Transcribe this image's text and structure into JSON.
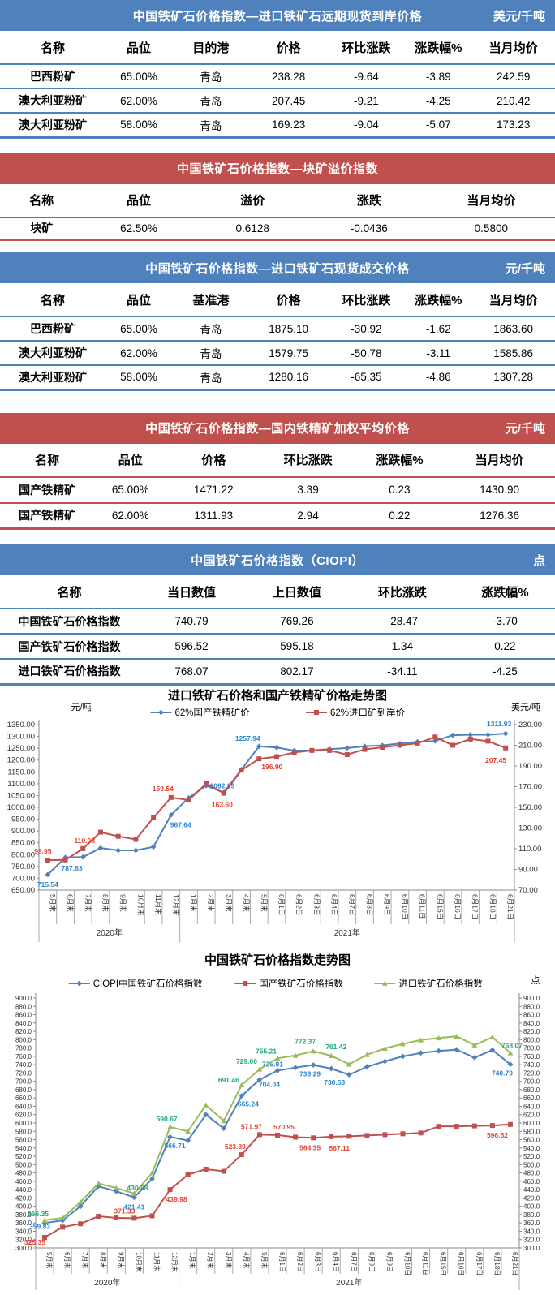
{
  "tables": [
    {
      "title": "中国铁矿石价格指数—进口铁矿石远期现货到岸价格",
      "unit": "美元/千吨",
      "theme_color": "#4F81BD",
      "headers": [
        "名称",
        "品位",
        "目的港",
        "价格",
        "环比涨跌",
        "涨跌幅%",
        "当月均价"
      ],
      "rows": [
        [
          "巴西粉矿",
          "65.00%",
          "青岛",
          "238.28",
          "-9.64",
          "-3.89",
          "242.59"
        ],
        [
          "澳大利亚粉矿",
          "62.00%",
          "青岛",
          "207.45",
          "-9.21",
          "-4.25",
          "210.42"
        ],
        [
          "澳大利亚粉矿",
          "58.00%",
          "青岛",
          "169.23",
          "-9.04",
          "-5.07",
          "173.23"
        ]
      ]
    },
    {
      "title": "中国铁矿石价格指数—块矿溢价指数",
      "unit": "",
      "theme_color": "#C0504D",
      "headers": [
        "名称",
        "品位",
        "溢价",
        "涨跌",
        "当月均价"
      ],
      "rows": [
        [
          "块矿",
          "62.50%",
          "0.6128",
          "-0.0436",
          "0.5800"
        ]
      ]
    },
    {
      "title": "中国铁矿石价格指数—进口铁矿石现货成交价格",
      "unit": "元/千吨",
      "theme_color": "#4F81BD",
      "headers": [
        "名称",
        "品位",
        "基准港",
        "价格",
        "环比涨跌",
        "涨跌幅%",
        "当月均价"
      ],
      "rows": [
        [
          "巴西粉矿",
          "65.00%",
          "青岛",
          "1875.10",
          "-30.92",
          "-1.62",
          "1863.60"
        ],
        [
          "澳大利亚粉矿",
          "62.00%",
          "青岛",
          "1579.75",
          "-50.78",
          "-3.11",
          "1585.86"
        ],
        [
          "澳大利亚粉矿",
          "58.00%",
          "青岛",
          "1280.16",
          "-65.35",
          "-4.86",
          "1307.28"
        ]
      ]
    },
    {
      "title": "中国铁矿石价格指数—国内铁精矿加权平均价格",
      "unit": "元/千吨",
      "theme_color": "#C0504D",
      "headers": [
        "名称",
        "品位",
        "价格",
        "环比涨跌",
        "涨跌幅%",
        "当月均价"
      ],
      "rows": [
        [
          "国产铁精矿",
          "65.00%",
          "1471.22",
          "3.39",
          "0.23",
          "1430.90"
        ],
        [
          "国产铁精矿",
          "62.00%",
          "1311.93",
          "2.94",
          "0.22",
          "1276.36"
        ]
      ]
    },
    {
      "title": "中国铁矿石价格指数（CIOPI）",
      "unit": "点",
      "theme_color": "#4F81BD",
      "headers": [
        "名称",
        "当日数值",
        "上日数值",
        "环比涨跌",
        "涨跌幅%"
      ],
      "rows": [
        [
          "中国铁矿石价格指数",
          "740.79",
          "769.26",
          "-28.47",
          "-3.70"
        ],
        [
          "国产铁矿石价格指数",
          "596.52",
          "595.18",
          "1.34",
          "0.22"
        ],
        [
          "进口铁矿石价格指数",
          "768.07",
          "802.17",
          "-34.11",
          "-4.25"
        ]
      ]
    }
  ],
  "chart_data": [
    {
      "type": "line",
      "title": "进口铁矿石价格和国产铁精矿价格走势图",
      "unit_left": "元/吨",
      "unit_right": "美元/吨",
      "left_axis": {
        "min": 650,
        "max": 1350,
        "step": 50,
        "decimals": 2
      },
      "right_axis": {
        "min": 70,
        "max": 230,
        "step": 20,
        "decimals": 2
      },
      "categories": [
        "5月末",
        "6月末",
        "7月末",
        "8月末",
        "9月末",
        "10月末",
        "11月末",
        "12月末",
        "1月末",
        "2月末",
        "3月末",
        "4月末",
        "5月末",
        "6月1日",
        "6月2日",
        "6月3日",
        "6月4日",
        "6月7日",
        "6月8日",
        "6月9日",
        "6月10日",
        "6月11日",
        "6月15日",
        "6月16日",
        "6月17日",
        "6月18日",
        "6月21日"
      ],
      "year_groups": [
        {
          "label": "2020年",
          "span": 8
        },
        {
          "label": "2021年",
          "span": 19
        }
      ],
      "series": [
        {
          "name": "62%国产铁精矿价",
          "color": "#4F81BD",
          "label_color": "#2E86D0",
          "marker": "diamond",
          "axis": "left",
          "values": [
            715.54,
            787.83,
            790,
            828,
            818,
            818,
            833,
            967.64,
            1040,
            1092,
            1062.89,
            1160,
            1257.94,
            1253,
            1240,
            1241,
            1246,
            1251,
            1258,
            1262,
            1270,
            1277,
            1281,
            1305,
            1307,
            1307,
            1311.93
          ],
          "labels": [
            {
              "i": 0,
              "t": "715.54",
              "dx": 0,
              "dy": 15
            },
            {
              "i": 1,
              "t": "787.83",
              "dx": 8,
              "dy": 16
            },
            {
              "i": 7,
              "t": "967.64",
              "dx": 12,
              "dy": 15
            },
            {
              "i": 10,
              "t": "1062.89",
              "dx": -2,
              "dy": -5
            },
            {
              "i": 12,
              "t": "1257.94",
              "dx": -14,
              "dy": -7
            },
            {
              "i": 26,
              "t": "1311.93",
              "dx": -8,
              "dy": -9
            }
          ]
        },
        {
          "name": "62%进口矿到岸价",
          "color": "#C0504D",
          "label_color": "#E8402F",
          "marker": "square",
          "axis": "right",
          "values": [
            98.95,
            99.2,
            110.08,
            126,
            122,
            119,
            140,
            159.54,
            157,
            173,
            163.6,
            186,
            196.9,
            199,
            203,
            205,
            205,
            201,
            206,
            208,
            210,
            212,
            218,
            210,
            216,
            214,
            207.45
          ],
          "labels": [
            {
              "i": 0,
              "t": "98.95",
              "dx": -6,
              "dy": -8
            },
            {
              "i": 2,
              "t": "110.08",
              "dx": 2,
              "dy": -7
            },
            {
              "i": 7,
              "t": "159.54",
              "dx": -10,
              "dy": -8
            },
            {
              "i": 10,
              "t": "163.60",
              "dx": -2,
              "dy": 17
            },
            {
              "i": 12,
              "t": "196.90",
              "dx": 16,
              "dy": 13
            },
            {
              "i": 26,
              "t": "207.45",
              "dx": -12,
              "dy": 18
            }
          ]
        }
      ]
    },
    {
      "type": "line",
      "title": "中国铁矿石价格指数走势图",
      "unit_left": "",
      "unit_right": "点",
      "left_axis": {
        "min": 300,
        "max": 900,
        "step": 20,
        "decimals": 1
      },
      "right_axis": {
        "min": 300,
        "max": 900,
        "step": 20,
        "decimals": 1
      },
      "categories": [
        "5月末",
        "6月末",
        "7月末",
        "8月末",
        "9月末",
        "10月末",
        "11月末",
        "12月末",
        "1月末",
        "2月末",
        "3月末",
        "4月末",
        "5月末",
        "6月1日",
        "6月2日",
        "6月3日",
        "6月4日",
        "6月7日",
        "6月8日",
        "6月9日",
        "6月10日",
        "6月11日",
        "6月15日",
        "6月16日",
        "6月17日",
        "6月18日",
        "6月21日"
      ],
      "year_groups": [
        {
          "label": "2020年",
          "span": 8
        },
        {
          "label": "2021年",
          "span": 19
        }
      ],
      "series": [
        {
          "name": "CIOPI中国铁矿石价格指数",
          "color": "#4F81BD",
          "label_color": "#2E86D0",
          "marker": "diamond",
          "axis": "left",
          "values": [
            359.83,
            366,
            400,
            448,
            436,
            421.41,
            466,
            566.71,
            558,
            620,
            587,
            665.24,
            704.04,
            725.91,
            733,
            739.29,
            730.53,
            716,
            735,
            748,
            760,
            768,
            773,
            776,
            757,
            775,
            740.79
          ],
          "labels": [
            {
              "i": 0,
              "t": "359.83",
              "dx": -6,
              "dy": 7
            },
            {
              "i": 5,
              "t": "421.41",
              "dx": 0,
              "dy": 15
            },
            {
              "i": 7,
              "t": "566.71",
              "dx": 6,
              "dy": 14
            },
            {
              "i": 11,
              "t": "665.24",
              "dx": 8,
              "dy": 13
            },
            {
              "i": 12,
              "t": "704.04",
              "dx": 12,
              "dy": 9
            },
            {
              "i": 13,
              "t": "725.91",
              "dx": -6,
              "dy": -5
            },
            {
              "i": 15,
              "t": "739.29",
              "dx": -4,
              "dy": 14
            },
            {
              "i": 16,
              "t": "730.53",
              "dx": 4,
              "dy": 20
            },
            {
              "i": 26,
              "t": "740.79",
              "dx": -10,
              "dy": 14
            }
          ]
        },
        {
          "name": "国产铁矿石价格指数",
          "color": "#C0504D",
          "label_color": "#E8402F",
          "marker": "square",
          "axis": "left",
          "values": [
            325.35,
            350,
            358,
            376,
            372,
            371.33,
            377,
            439.98,
            476,
            489,
            484,
            523.89,
            571.97,
            570.95,
            566,
            564.35,
            567.11,
            568,
            570,
            572,
            574,
            576,
            592,
            592,
            593,
            594,
            596.52
          ],
          "labels": [
            {
              "i": 0,
              "t": "325.35",
              "dx": -12,
              "dy": 9
            },
            {
              "i": 5,
              "t": "371.33",
              "dx": -12,
              "dy": -6
            },
            {
              "i": 7,
              "t": "439.98",
              "dx": 8,
              "dy": 15
            },
            {
              "i": 11,
              "t": "523.89",
              "dx": -8,
              "dy": -7
            },
            {
              "i": 12,
              "t": "571.97",
              "dx": -10,
              "dy": -7
            },
            {
              "i": 13,
              "t": "570.95",
              "dx": 8,
              "dy": -7
            },
            {
              "i": 15,
              "t": "564.35",
              "dx": -4,
              "dy": 15
            },
            {
              "i": 16,
              "t": "567.11",
              "dx": 10,
              "dy": 17
            },
            {
              "i": 26,
              "t": "596.52",
              "dx": -16,
              "dy": 16
            }
          ]
        },
        {
          "name": "进口铁矿石价格指数",
          "color": "#9BBB59",
          "label_color": "#1FA87E",
          "marker": "triangle",
          "axis": "left",
          "values": [
            366.35,
            372,
            410,
            455,
            444,
            430.88,
            480,
            590.67,
            580,
            643,
            605,
            691.46,
            729,
            755.21,
            762,
            772.37,
            761.42,
            741,
            764,
            779,
            790,
            799,
            804,
            808,
            787,
            806,
            768.07
          ],
          "labels": [
            {
              "i": 0,
              "t": "366.35",
              "dx": -8,
              "dy": -5
            },
            {
              "i": 5,
              "t": "430.88",
              "dx": 4,
              "dy": -4
            },
            {
              "i": 7,
              "t": "590.67",
              "dx": -4,
              "dy": -7
            },
            {
              "i": 11,
              "t": "691.46",
              "dx": -16,
              "dy": -3
            },
            {
              "i": 12,
              "t": "729.00",
              "dx": -16,
              "dy": -7
            },
            {
              "i": 13,
              "t": "755.21",
              "dx": -14,
              "dy": -6
            },
            {
              "i": 15,
              "t": "772.37",
              "dx": -10,
              "dy": -9
            },
            {
              "i": 16,
              "t": "761.42",
              "dx": 6,
              "dy": -8
            },
            {
              "i": 26,
              "t": "768.07",
              "dx": 2,
              "dy": -6
            }
          ]
        }
      ]
    }
  ]
}
